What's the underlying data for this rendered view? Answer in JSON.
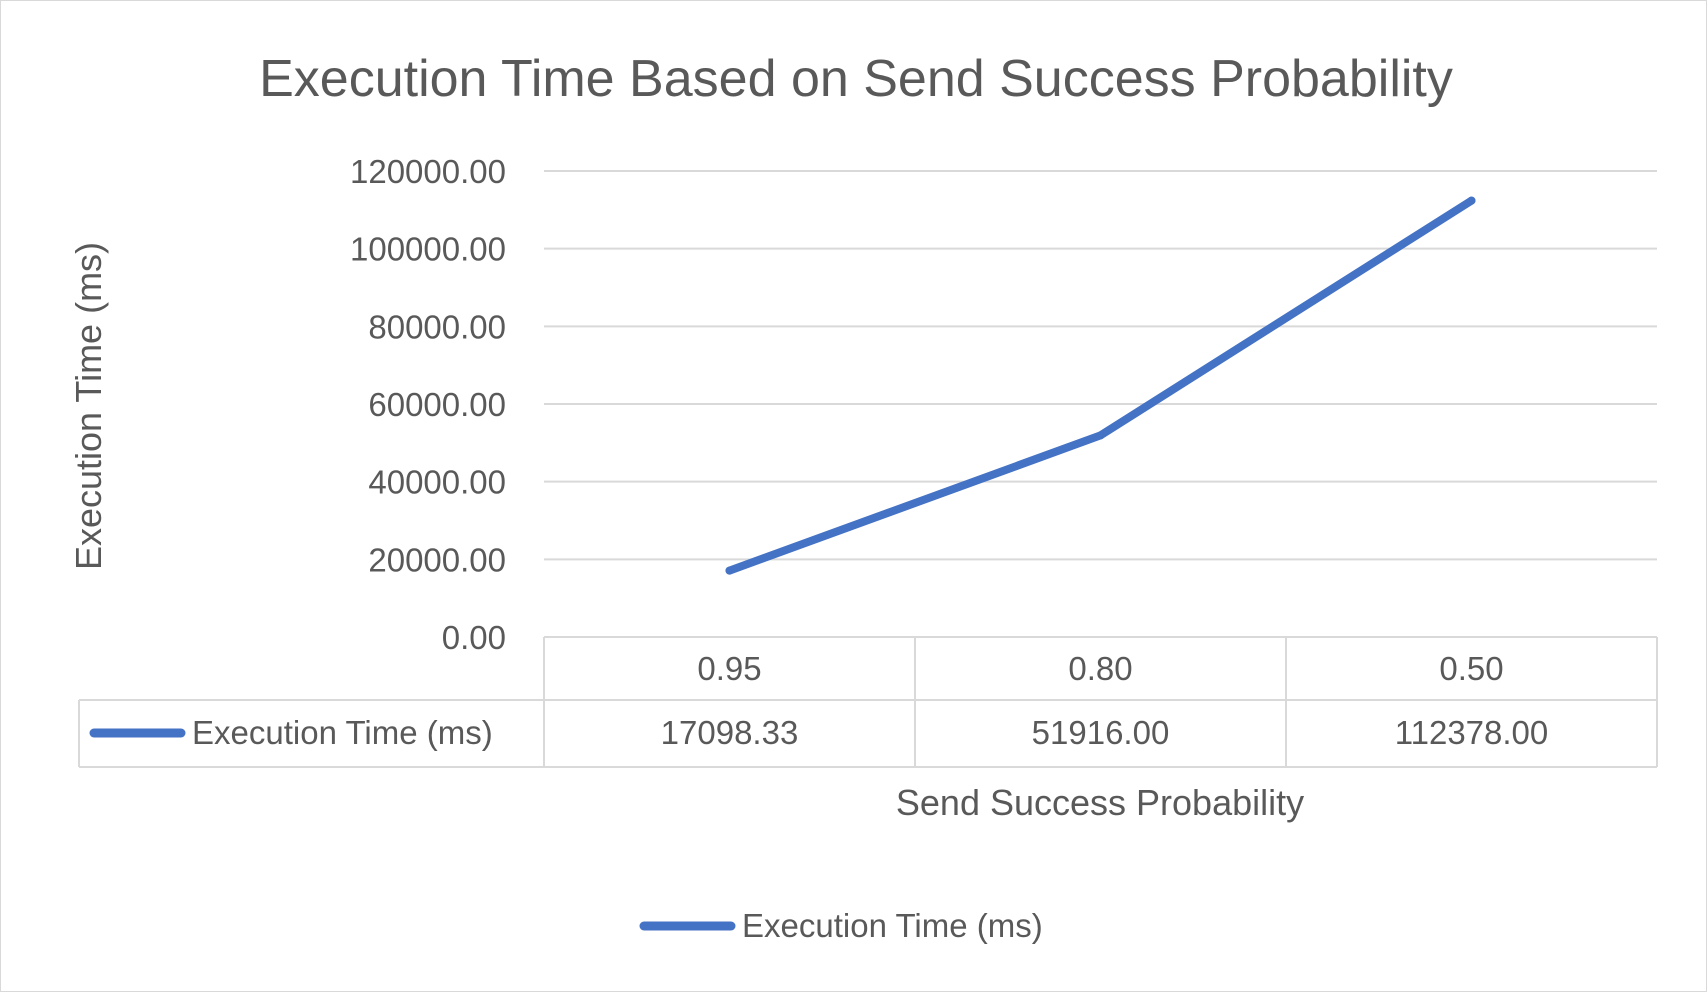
{
  "chart_data": {
    "type": "line",
    "title": "Execution Time Based on Send Success Probability",
    "xlabel": "Send Success Probability",
    "ylabel": "Execution Time (ms)",
    "categories": [
      "0.95",
      "0.80",
      "0.50"
    ],
    "series": [
      {
        "name": "Execution Time (ms)",
        "values": [
          17098.33,
          51916.0,
          112378.0
        ],
        "color": "#4472C4"
      }
    ],
    "ylim": [
      0,
      120000
    ],
    "yticks": [
      "0.00",
      "20000.00",
      "40000.00",
      "60000.00",
      "80000.00",
      "100000.00",
      "120000.00"
    ],
    "table_values": [
      "17098.33",
      "51916.00",
      "112378.00"
    ],
    "grid": true,
    "data_table": true,
    "legend": "bottom"
  },
  "colors": {
    "series": "#4472C4",
    "grid": "#d9d9d9",
    "text": "#595959"
  }
}
